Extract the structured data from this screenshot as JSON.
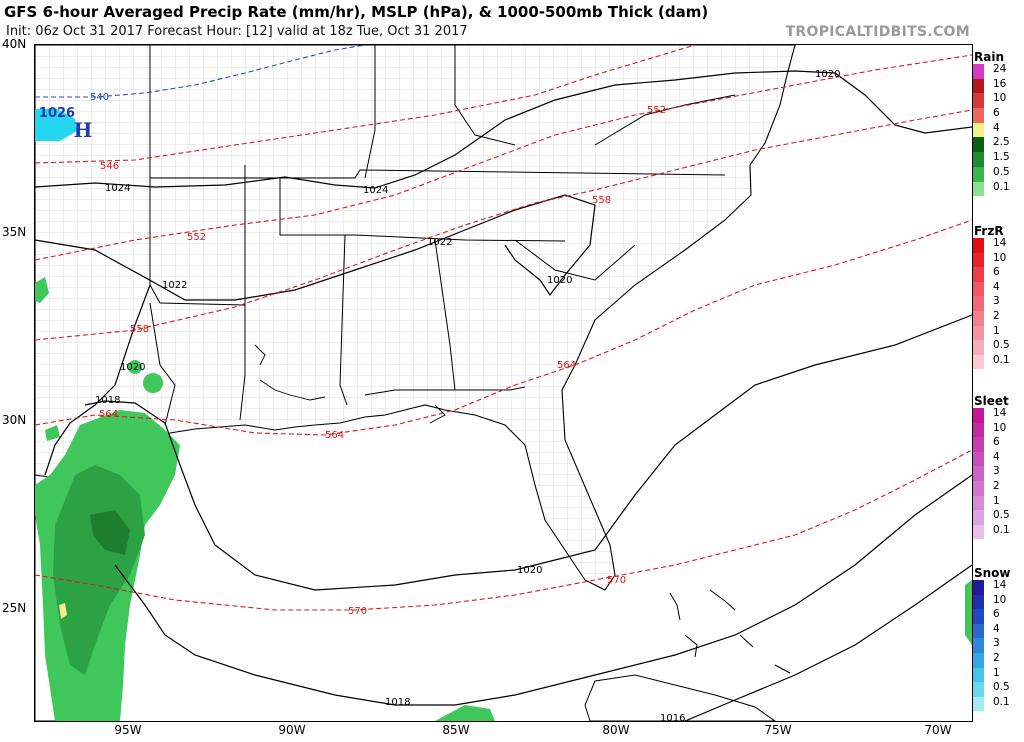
{
  "header": {
    "title": "GFS 6-hour Averaged Precip Rate (mm/hr), MSLP (hPa), & 1000-500mb Thick (dam)",
    "subtitle": "Init: 06z Oct 31 2017   Forecast Hour: [12]   valid at 18z Tue, Oct 31 2017",
    "site": "TROPICALTIDBITS.COM"
  },
  "map": {
    "lat_labels": [
      "40N",
      "35N",
      "30N",
      "25N"
    ],
    "lon_labels": [
      "95W",
      "90W",
      "85W",
      "80W",
      "75W",
      "70W"
    ],
    "high_center": {
      "value": "1026",
      "letter": "H"
    },
    "isobar_labels": [
      "1020",
      "1024",
      "1024",
      "1022",
      "1022",
      "1020",
      "1020",
      "1018",
      "1020",
      "1018",
      "1016"
    ],
    "thickness_labels": [
      "540",
      "546",
      "552",
      "552",
      "558",
      "558",
      "564",
      "564",
      "564",
      "570",
      "570"
    ],
    "colors": {
      "isobar": "#000000",
      "thickness_warm": "#d81b1b",
      "thickness_cold": "#2a4fc2",
      "county_lines": "#c8c8c8",
      "coast": "#000000",
      "precip": "#39c35a"
    }
  },
  "legend": {
    "rain": {
      "title": "Rain",
      "levels": [
        "24",
        "16",
        "10",
        "6",
        "4",
        "2.5",
        "1.5",
        "0.5",
        "0.1"
      ],
      "colors": [
        "#d23bc4",
        "#b21a1a",
        "#d43a3a",
        "#e86a5a",
        "#f4f08a",
        "#0e5e14",
        "#1f8a2e",
        "#38b64c",
        "#8de08f"
      ]
    },
    "frzr": {
      "title": "FrzR",
      "levels": [
        "14",
        "10",
        "6",
        "4",
        "3",
        "2",
        "1",
        "0.5",
        "0.1"
      ],
      "colors": [
        "#e01010",
        "#e62626",
        "#ea3d4a",
        "#ee5864",
        "#f06b7a",
        "#f3808e",
        "#f595a4",
        "#f8adbb",
        "#fbc8d4"
      ]
    },
    "sleet": {
      "title": "Sleet",
      "levels": [
        "14",
        "10",
        "6",
        "4",
        "3",
        "2",
        "1",
        "0.5",
        "0.1"
      ],
      "colors": [
        "#c21896",
        "#c32aa2",
        "#c63eaf",
        "#c950bc",
        "#cc63c6",
        "#d076cf",
        "#d68ad8",
        "#dea3e0",
        "#e8c0ea"
      ]
    },
    "snow": {
      "title": "Snow",
      "levels": [
        "14",
        "10",
        "6",
        "4",
        "3",
        "2",
        "1",
        "0.5",
        "0.1"
      ],
      "colors": [
        "#1e1a9a",
        "#1f2fb0",
        "#2048c4",
        "#2868d0",
        "#2e88dc",
        "#36a6e4",
        "#44c4ea",
        "#68d8ee",
        "#a6ecf6"
      ]
    }
  }
}
